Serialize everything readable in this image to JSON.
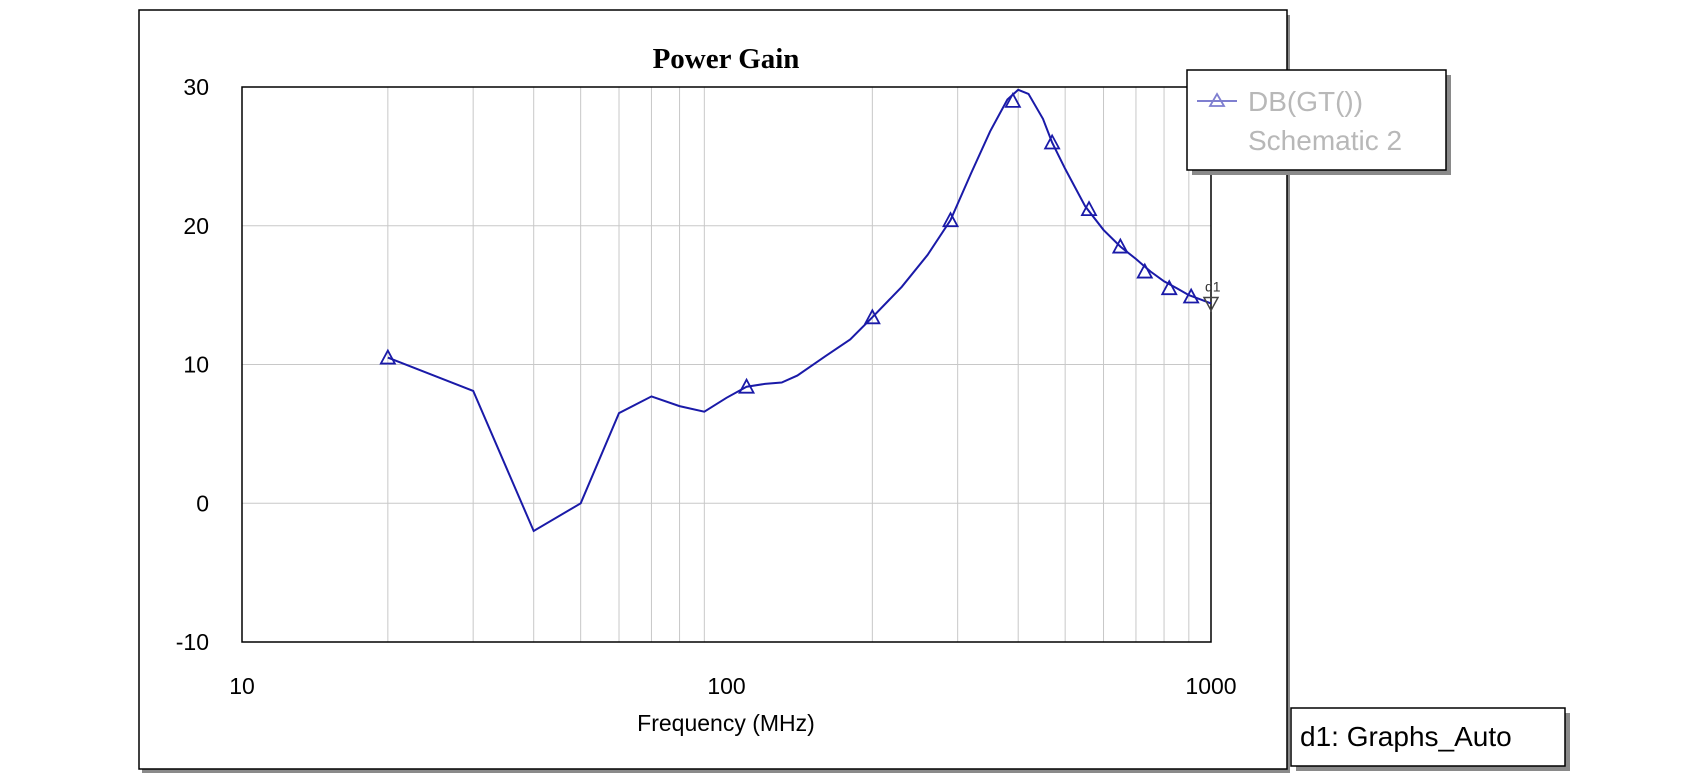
{
  "colors": {
    "series": "#1a1aa8",
    "grid": "#c8c8c8",
    "frame": "#000000",
    "shadow": "#8a8a8a",
    "legend_text": "#b8b8b8"
  },
  "legend": {
    "line1": "DB(GT())",
    "line2": "Schematic 2"
  },
  "marker_status": "d1: Graphs_Auto",
  "marker_name": "d1",
  "chart_data": {
    "type": "line",
    "title": "Power Gain",
    "xlabel": "Frequency (MHz)",
    "ylabel": "",
    "xscale": "log",
    "xlim": [
      10,
      1000
    ],
    "ylim": [
      -10,
      30
    ],
    "xticks": [
      10,
      100,
      1000
    ],
    "xtick_labels": [
      "10",
      "100",
      "1000"
    ],
    "yticks": [
      -10,
      0,
      10,
      20,
      30
    ],
    "ytick_labels": [
      "-10",
      "0",
      "10",
      "20",
      "30"
    ],
    "grid": true,
    "legend_position": "top-right, outside plot",
    "series": [
      {
        "name": "DB(GT())",
        "x": [
          20,
          30,
          40,
          50,
          60,
          70,
          80,
          90,
          100,
          110,
          120,
          130,
          140,
          160,
          180,
          200,
          230,
          260,
          290,
          320,
          350,
          380,
          400,
          420,
          450,
          470,
          500,
          550,
          600,
          650,
          700,
          750,
          800,
          850,
          900,
          950,
          1000
        ],
        "y": [
          10.5,
          8.1,
          -2,
          0,
          6.5,
          7.7,
          7.0,
          6.6,
          7.6,
          8.4,
          8.6,
          8.7,
          9.2,
          10.6,
          11.8,
          13.4,
          15.6,
          17.9,
          20.4,
          23.8,
          26.8,
          29.1,
          29.8,
          29.5,
          27.7,
          26.0,
          24.1,
          21.4,
          19.7,
          18.5,
          17.6,
          16.7,
          16.0,
          15.5,
          15.0,
          14.7,
          14.4
        ],
        "markers_x": [
          20,
          110,
          200,
          290,
          390,
          470,
          560,
          650,
          730,
          820,
          910
        ],
        "markers_y": [
          10.5,
          8.4,
          13.4,
          20.4,
          29.0,
          26.0,
          21.2,
          18.5,
          16.7,
          15.5,
          14.9
        ]
      }
    ],
    "data_marker": {
      "name": "d1",
      "x": 1000,
      "y": 14.4
    }
  }
}
